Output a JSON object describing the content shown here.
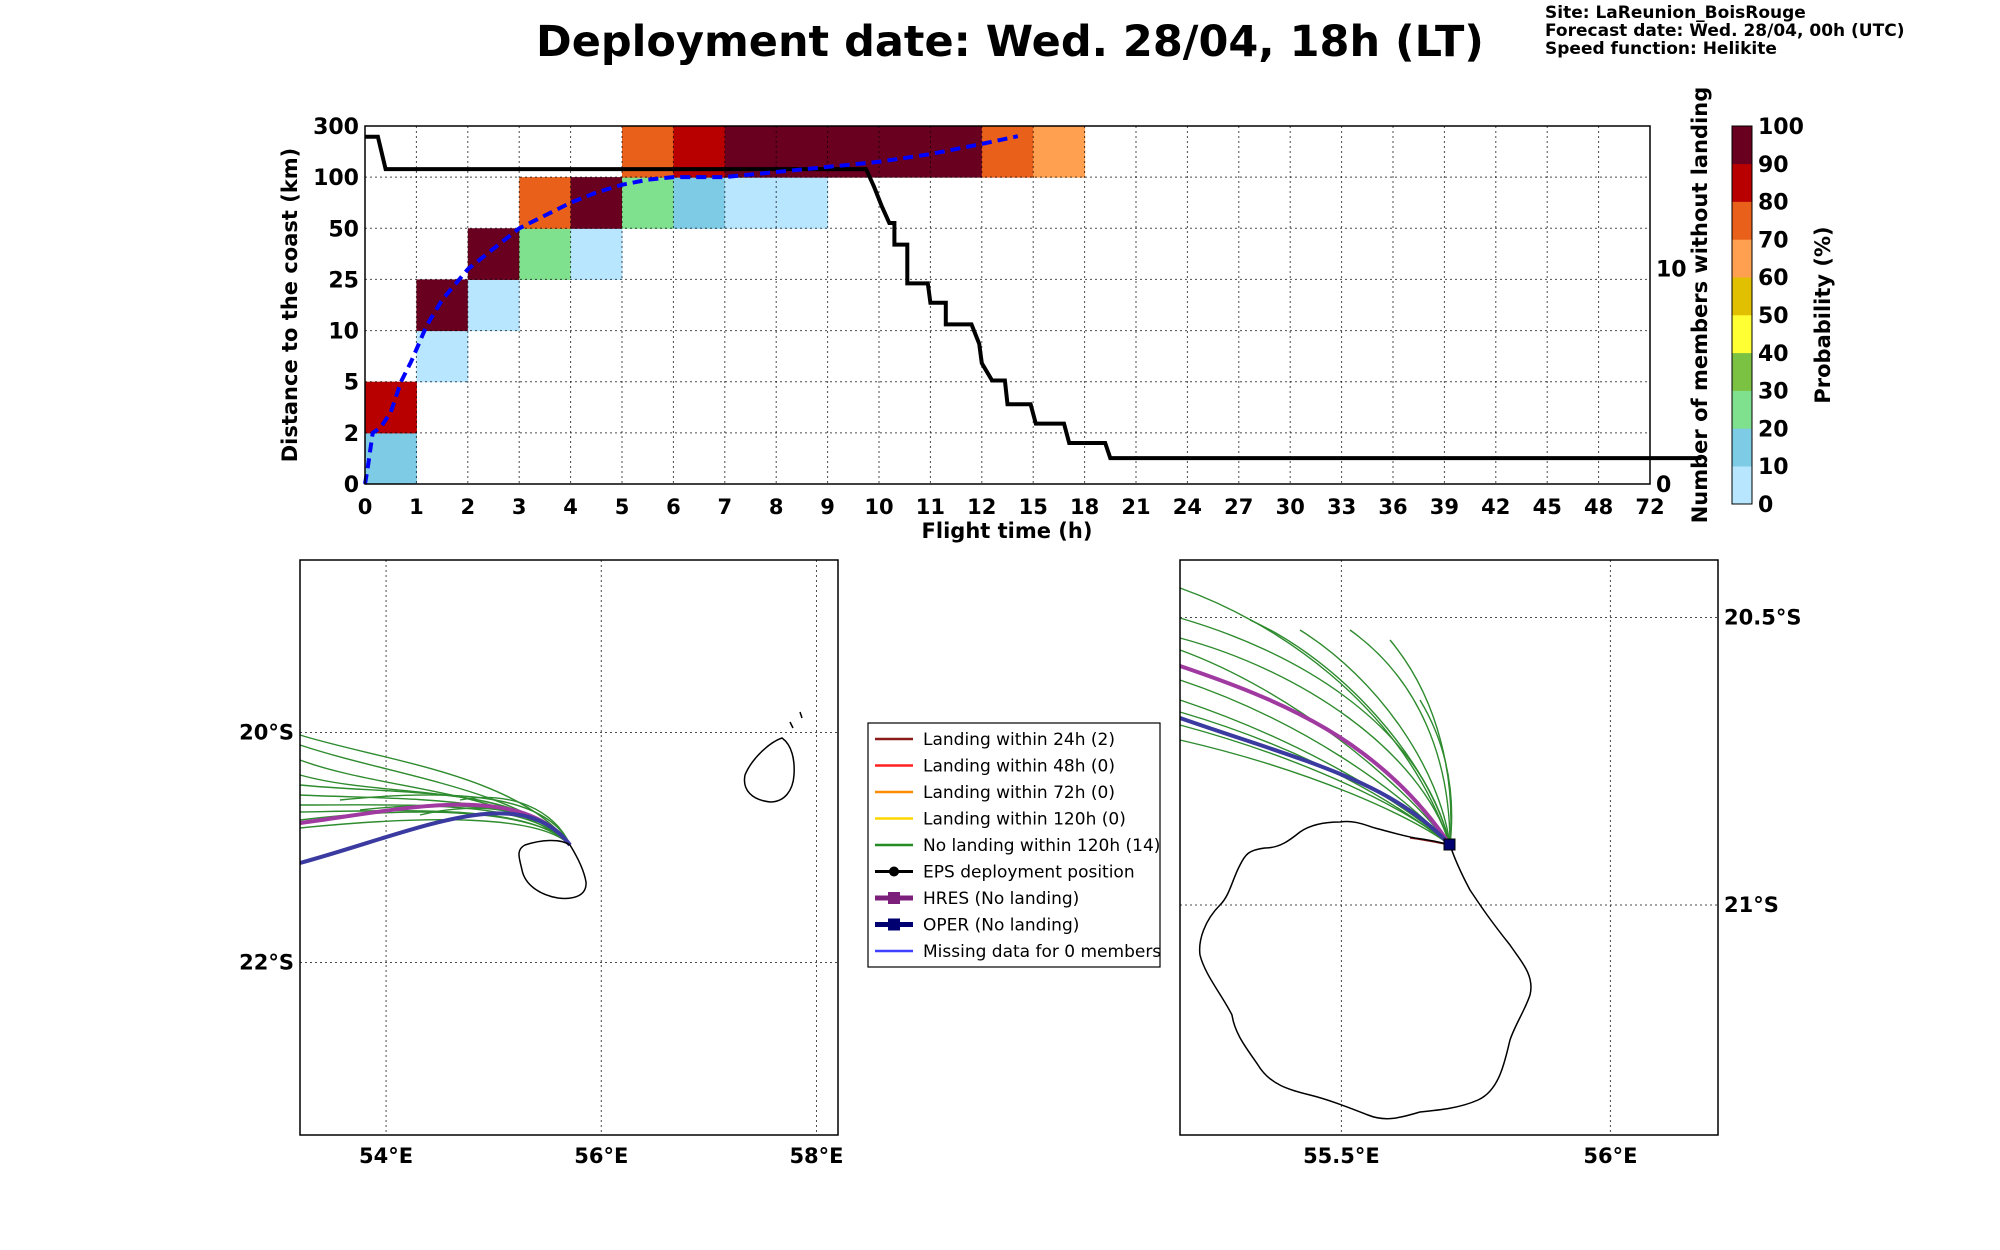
{
  "header": {
    "title": "Deployment date: Wed. 28/04, 18h (LT)",
    "info_lines": [
      "Site: LaReunion_BoisRouge",
      "Forecast date: Wed. 28/04, 00h (UTC)",
      "Speed function: Helikite"
    ]
  },
  "chart_data": [
    {
      "type": "heatmap",
      "xlabel": "Flight time (h)",
      "ylabel": "Distance to the coast (km)",
      "y2label": "Number of members without landing",
      "x_ticks": [
        "0",
        "1",
        "2",
        "3",
        "4",
        "5",
        "6",
        "7",
        "8",
        "9",
        "10",
        "11",
        "12",
        "15",
        "18",
        "21",
        "24",
        "27",
        "30",
        "33",
        "36",
        "39",
        "42",
        "45",
        "48",
        "72"
      ],
      "y_ticks": [
        "0",
        "2",
        "5",
        "10",
        "25",
        "50",
        "100",
        "300"
      ],
      "y2_ticks": [
        {
          "label": "0",
          "value": 0
        },
        {
          "label": "10",
          "value": 10
        }
      ],
      "y2lim": [
        0,
        16.6
      ],
      "grid": true,
      "cells": [
        {
          "x": 0,
          "y": 0,
          "prob": 15
        },
        {
          "x": 0,
          "y": 1,
          "prob": 85
        },
        {
          "x": 1,
          "y": 2,
          "prob": 5
        },
        {
          "x": 1,
          "y": 3,
          "prob": 95
        },
        {
          "x": 2,
          "y": 3,
          "prob": 5
        },
        {
          "x": 2,
          "y": 4,
          "prob": 95
        },
        {
          "x": 3,
          "y": 4,
          "prob": 25
        },
        {
          "x": 3,
          "y": 5,
          "prob": 75
        },
        {
          "x": 4,
          "y": 4,
          "prob": 5
        },
        {
          "x": 4,
          "y": 5,
          "prob": 95
        },
        {
          "x": 5,
          "y": 5,
          "prob": 25
        },
        {
          "x": 5,
          "y": 6,
          "prob": 75
        },
        {
          "x": 6,
          "y": 5,
          "prob": 15
        },
        {
          "x": 6,
          "y": 6,
          "prob": 85
        },
        {
          "x": 7,
          "y": 5,
          "prob": 5
        },
        {
          "x": 7,
          "y": 6,
          "prob": 95
        },
        {
          "x": 8,
          "y": 5,
          "prob": 5
        },
        {
          "x": 8,
          "y": 6,
          "prob": 95
        },
        {
          "x": 9,
          "y": 6,
          "prob": 95
        },
        {
          "x": 10,
          "y": 6,
          "prob": 95
        },
        {
          "x": 11,
          "y": 6,
          "prob": 95
        },
        {
          "x": 12,
          "y": 6,
          "prob": 75
        },
        {
          "x": 13,
          "y": 6,
          "prob": 65
        }
      ],
      "mean_distance_line": {
        "color": "#0000ff",
        "points": [
          [
            0,
            0
          ],
          [
            0.05,
            0.3
          ],
          [
            0.15,
            1.0
          ],
          [
            0.3,
            1.1
          ],
          [
            0.5,
            1.4
          ],
          [
            0.7,
            2.0
          ],
          [
            0.9,
            2.4
          ],
          [
            1.2,
            3.1
          ],
          [
            1.5,
            3.6
          ],
          [
            2.0,
            4.2
          ],
          [
            2.5,
            4.6
          ],
          [
            3.0,
            5.0
          ],
          [
            3.5,
            5.25
          ],
          [
            4.0,
            5.5
          ],
          [
            4.5,
            5.7
          ],
          [
            5.0,
            5.85
          ],
          [
            5.5,
            5.95
          ],
          [
            6.0,
            6.0
          ],
          [
            7.0,
            6.0
          ],
          [
            8.0,
            6.1
          ],
          [
            9.0,
            6.2
          ],
          [
            10.0,
            6.3
          ],
          [
            11.0,
            6.45
          ],
          [
            12.0,
            6.65
          ],
          [
            12.7,
            6.8
          ]
        ]
      },
      "members_line": {
        "color": "#000000",
        "points": [
          [
            0,
            16.1
          ],
          [
            0.25,
            16.1
          ],
          [
            0.4,
            14.6
          ],
          [
            9.75,
            14.6
          ],
          [
            9.9,
            13.8
          ],
          [
            10.05,
            12.9
          ],
          [
            10.2,
            12.1
          ],
          [
            10.3,
            12.1
          ],
          [
            10.3,
            11.1
          ],
          [
            10.55,
            11.1
          ],
          [
            10.55,
            9.3
          ],
          [
            10.95,
            9.3
          ],
          [
            11.0,
            8.4
          ],
          [
            11.3,
            8.4
          ],
          [
            11.3,
            7.4
          ],
          [
            11.8,
            7.4
          ],
          [
            11.95,
            6.5
          ],
          [
            12.0,
            5.6
          ],
          [
            12.2,
            4.8
          ],
          [
            12.45,
            4.8
          ],
          [
            12.5,
            3.7
          ],
          [
            12.95,
            3.7
          ],
          [
            13.05,
            2.8
          ],
          [
            13.6,
            2.8
          ],
          [
            13.7,
            1.9
          ],
          [
            14.4,
            1.9
          ],
          [
            14.5,
            1.2
          ],
          [
            26.0,
            1.2
          ]
        ]
      },
      "colorbar": {
        "label": "Probability (%)",
        "ticks": [
          "0",
          "10",
          "20",
          "30",
          "40",
          "50",
          "60",
          "70",
          "80",
          "90",
          "100"
        ],
        "colors": [
          "#b9e6ff",
          "#7ecbe6",
          "#7fe08e",
          "#7cc242",
          "#ffff33",
          "#e0c000",
          "#ffa050",
          "#e8601a",
          "#b80000",
          "#6a0020"
        ]
      }
    },
    {
      "type": "map",
      "x_ticks": [
        {
          "label": "54°E",
          "value": 54
        },
        {
          "label": "56°E",
          "value": 56
        },
        {
          "label": "58°E",
          "value": 58
        }
      ],
      "y_ticks": [
        {
          "label": "20°S",
          "value": -20
        },
        {
          "label": "22°S",
          "value": -22
        }
      ],
      "xlim": [
        53.2,
        58.2
      ],
      "ylim": [
        -23.5,
        -18.5
      ]
    },
    {
      "type": "map",
      "x_ticks": [
        {
          "label": "55.5°E",
          "value": 55.5
        },
        {
          "label": "56°E",
          "value": 56
        }
      ],
      "y_ticks": [
        {
          "label": "20.5°S",
          "value": -20.5
        },
        {
          "label": "21°S",
          "value": -21
        }
      ],
      "xlim": [
        55.2,
        56.2
      ],
      "ylim": [
        -21.4,
        -20.4
      ]
    }
  ],
  "legend": {
    "items": [
      {
        "label": "Landing within 24h (2)",
        "color": "#8b1a1a",
        "kind": "line"
      },
      {
        "label": "Landing within 48h (0)",
        "color": "#ff2020",
        "kind": "line"
      },
      {
        "label": "Landing within 72h (0)",
        "color": "#ff8c00",
        "kind": "line"
      },
      {
        "label": "Landing within 120h (0)",
        "color": "#ffd700",
        "kind": "line"
      },
      {
        "label": "No landing within 120h (14)",
        "color": "#228b22",
        "kind": "line"
      },
      {
        "label": "EPS deployment position",
        "color": "#000000",
        "kind": "circle"
      },
      {
        "label": "HRES (No landing)",
        "color": "#7b1f7b",
        "kind": "square"
      },
      {
        "label": "OPER (No landing)",
        "color": "#000070",
        "kind": "square"
      },
      {
        "label": "Missing data for 0 members",
        "color": "#4040ff",
        "kind": "line"
      }
    ]
  }
}
